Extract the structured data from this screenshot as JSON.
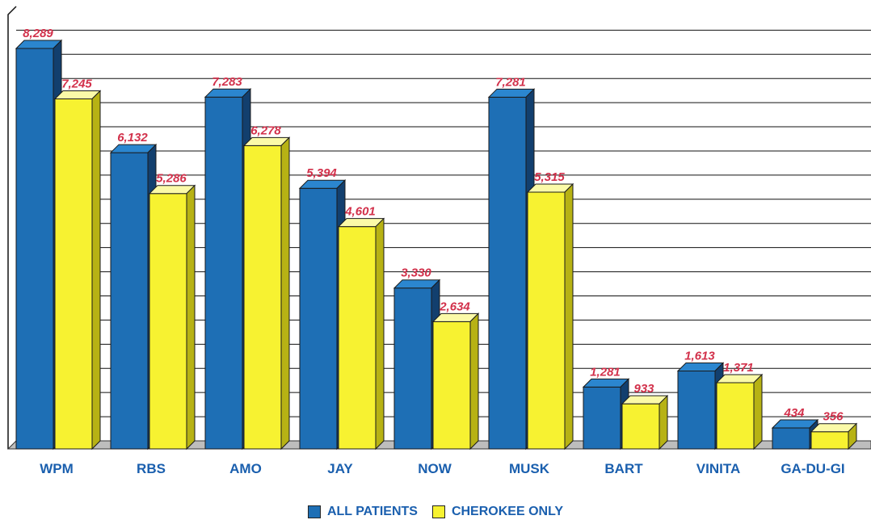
{
  "chart_data": {
    "type": "bar",
    "categories": [
      "WPM",
      "RBS",
      "AMO",
      "JAY",
      "NOW",
      "MUSK",
      "BART",
      "VINITA",
      "GA-DU-GI"
    ],
    "series": [
      {
        "name": "ALL PATIENTS",
        "values": [
          8289,
          6132,
          7283,
          5394,
          3330,
          7281,
          1281,
          1613,
          434
        ],
        "labels": [
          "8,289",
          "6,132",
          "7,283",
          "5,394",
          "3,330",
          "7,281",
          "1,281",
          "1,613",
          "434"
        ]
      },
      {
        "name": "CHEROKEE ONLY",
        "values": [
          7245,
          5286,
          6278,
          4601,
          2634,
          5315,
          933,
          1371,
          356
        ],
        "labels": [
          "7,245",
          "5,286",
          "6,278",
          "4,601",
          "2,634",
          "5,315",
          "933",
          "1,371",
          "356"
        ]
      }
    ],
    "ylim": [
      0,
      9000
    ],
    "grid": true,
    "legend_position": "bottom-center",
    "colors": {
      "all_patients": "#1e6fb5",
      "all_patients_top": "#2b86cf",
      "all_patients_side": "#123f6e",
      "cherokee_only": "#f7f231",
      "cherokee_only_top": "#fbfaa8",
      "cherokee_only_side": "#b7b214",
      "category_label": "#1a5fae",
      "value_label": "#d2314b",
      "gridline": "#111111"
    }
  }
}
